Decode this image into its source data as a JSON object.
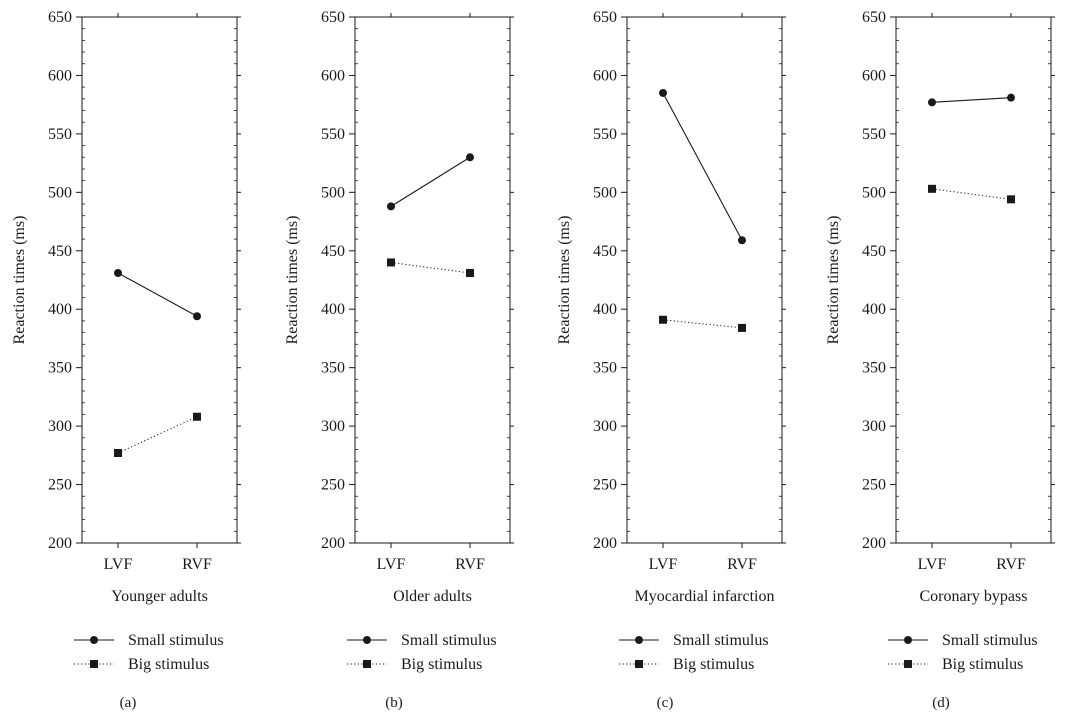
{
  "chart_data": [
    {
      "type": "line",
      "panel_label": "(a)",
      "xlabel": "Younger adults",
      "ylabel": "Reaction times (ms)",
      "categories": [
        "LVF",
        "RVF"
      ],
      "ylim": [
        200,
        650
      ],
      "yticks": [
        200,
        250,
        300,
        350,
        400,
        450,
        500,
        550,
        600,
        650
      ],
      "series": [
        {
          "name": "Small stimulus",
          "values": [
            431,
            394
          ],
          "marker": "circle",
          "line": "solid",
          "color": "#1a1a1a"
        },
        {
          "name": "Big stimulus",
          "values": [
            277,
            308
          ],
          "marker": "square",
          "line": "dotted",
          "color": "#1a1a1a"
        }
      ],
      "legend_position": "bottom"
    },
    {
      "type": "line",
      "panel_label": "(b)",
      "xlabel": "Older adults",
      "ylabel": "Reaction times (ms)",
      "categories": [
        "LVF",
        "RVF"
      ],
      "ylim": [
        200,
        650
      ],
      "yticks": [
        200,
        250,
        300,
        350,
        400,
        450,
        500,
        550,
        600,
        650
      ],
      "series": [
        {
          "name": "Small stimulus",
          "values": [
            488,
            530
          ],
          "marker": "circle",
          "line": "solid",
          "color": "#1a1a1a"
        },
        {
          "name": "Big stimulus",
          "values": [
            440,
            431
          ],
          "marker": "square",
          "line": "dotted",
          "color": "#1a1a1a"
        }
      ],
      "legend_position": "bottom"
    },
    {
      "type": "line",
      "panel_label": "(c)",
      "xlabel": "Myocardial infarction",
      "ylabel": "Reaction times (ms)",
      "categories": [
        "LVF",
        "RVF"
      ],
      "ylim": [
        200,
        650
      ],
      "yticks": [
        200,
        250,
        300,
        350,
        400,
        450,
        500,
        550,
        600,
        650
      ],
      "series": [
        {
          "name": "Small stimulus",
          "values": [
            585,
            459
          ],
          "marker": "circle",
          "line": "solid",
          "color": "#1a1a1a"
        },
        {
          "name": "Big stimulus",
          "values": [
            391,
            384
          ],
          "marker": "square",
          "line": "dotted",
          "color": "#1a1a1a"
        }
      ],
      "legend_position": "bottom"
    },
    {
      "type": "line",
      "panel_label": "(d)",
      "xlabel": "Coronary bypass",
      "ylabel": "Reaction times (ms)",
      "categories": [
        "LVF",
        "RVF"
      ],
      "ylim": [
        200,
        650
      ],
      "yticks": [
        200,
        250,
        300,
        350,
        400,
        450,
        500,
        550,
        600,
        650
      ],
      "series": [
        {
          "name": "Small stimulus",
          "values": [
            577,
            581
          ],
          "marker": "circle",
          "line": "solid",
          "color": "#1a1a1a"
        },
        {
          "name": "Big stimulus",
          "values": [
            503,
            494
          ],
          "marker": "square",
          "line": "dotted",
          "color": "#1a1a1a"
        }
      ],
      "legend_position": "bottom"
    }
  ]
}
